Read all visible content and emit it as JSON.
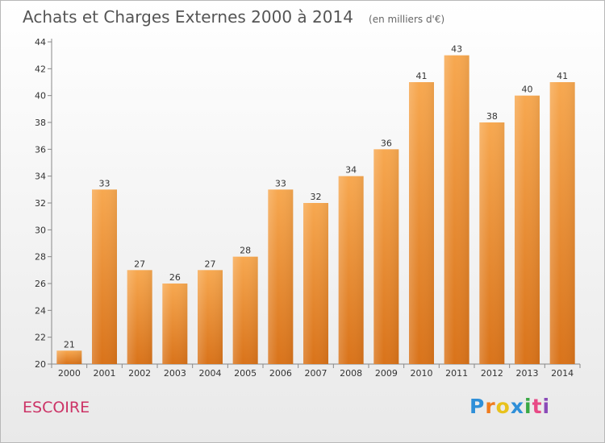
{
  "header": {
    "title": "Achats et Charges Externes 2000 à 2014",
    "subtitle": "(en milliers d'€)"
  },
  "footer": {
    "commune": "ESCOIRE",
    "logo_text": "Proxiti"
  },
  "colors": {
    "bar_top": "#f7a850",
    "bar_bottom": "#d9731a",
    "title": "#555555",
    "commune": "#cc3366"
  },
  "chart_data": {
    "type": "bar",
    "title": "Achats et Charges Externes 2000 à 2014",
    "subtitle": "(en milliers d'€)",
    "xlabel": "",
    "ylabel": "",
    "categories": [
      "2000",
      "2001",
      "2002",
      "2003",
      "2004",
      "2005",
      "2006",
      "2007",
      "2008",
      "2009",
      "2010",
      "2011",
      "2012",
      "2013",
      "2014"
    ],
    "values": [
      21,
      33,
      27,
      26,
      27,
      28,
      33,
      32,
      34,
      36,
      41,
      43,
      38,
      40,
      41
    ],
    "ylim": [
      20,
      44
    ],
    "yticks": [
      20,
      22,
      24,
      26,
      28,
      30,
      32,
      34,
      36,
      38,
      40,
      42,
      44
    ],
    "grid": false,
    "legend": "none"
  }
}
